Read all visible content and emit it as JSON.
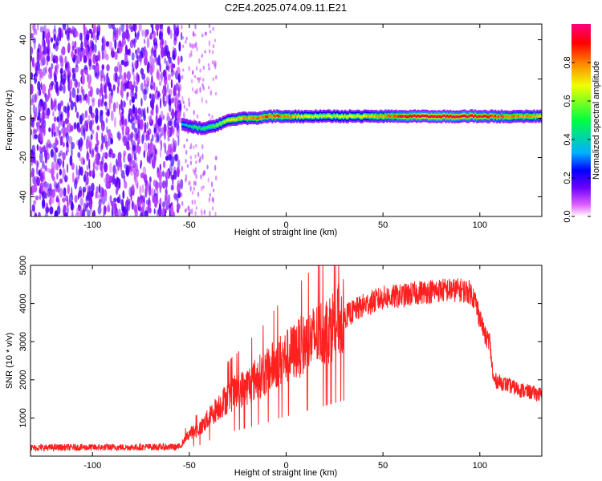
{
  "title": "C2E4.2025.074.09.11.E21",
  "chart_data": [
    {
      "type": "heatmap",
      "xlabel": "Height of straight line (km)",
      "ylabel": "Frequency (Hz)",
      "xlim": [
        -132,
        132
      ],
      "ylim": [
        -50,
        48
      ],
      "x_ticks": [
        -100,
        -50,
        0,
        50,
        100
      ],
      "y_ticks": [
        -40,
        -20,
        0,
        20,
        40
      ],
      "colorbar": {
        "label": "Normalized spectral amplitude",
        "range": [
          0,
          1
        ],
        "ticks": [
          0.0,
          0.2,
          0.4,
          0.6,
          0.8
        ],
        "colors": [
          "#ffffff",
          "#e060ff",
          "#6a00ff",
          "#0000ff",
          "#00b0ff",
          "#00ff40",
          "#f0ff00",
          "#ff8000",
          "#ff0000",
          "#ff0080"
        ]
      },
      "noise_region_x": [
        -132,
        -54
      ],
      "sparse_noise_x": [
        -54,
        -36
      ],
      "signal_ridge": [
        {
          "x": -54,
          "freq": -3,
          "amp": 0.35
        },
        {
          "x": -50,
          "freq": -4,
          "amp": 0.45
        },
        {
          "x": -46,
          "freq": -5,
          "amp": 0.5
        },
        {
          "x": -42,
          "freq": -5,
          "amp": 0.5
        },
        {
          "x": -38,
          "freq": -4,
          "amp": 0.55
        },
        {
          "x": -35,
          "freq": -3,
          "amp": 0.6
        },
        {
          "x": -30,
          "freq": -1,
          "amp": 0.7
        },
        {
          "x": -25,
          "freq": 0,
          "amp": 0.75
        },
        {
          "x": -20,
          "freq": 0,
          "amp": 0.78
        },
        {
          "x": -15,
          "freq": 0,
          "amp": 0.82
        },
        {
          "x": -10,
          "freq": 1,
          "amp": 0.85
        },
        {
          "x": -5,
          "freq": 1,
          "amp": 0.85
        },
        {
          "x": 0,
          "freq": 1,
          "amp": 0.8
        },
        {
          "x": 10,
          "freq": 1,
          "amp": 0.7
        },
        {
          "x": 20,
          "freq": 1,
          "amp": 0.65
        },
        {
          "x": 30,
          "freq": 1,
          "amp": 0.68
        },
        {
          "x": 40,
          "freq": 1,
          "amp": 0.72
        },
        {
          "x": 50,
          "freq": 1,
          "amp": 0.8
        },
        {
          "x": 60,
          "freq": 1,
          "amp": 0.9
        },
        {
          "x": 70,
          "freq": 1,
          "amp": 0.95
        },
        {
          "x": 80,
          "freq": 1,
          "amp": 0.95
        },
        {
          "x": 90,
          "freq": 1,
          "amp": 0.95
        },
        {
          "x": 100,
          "freq": 1,
          "amp": 0.92
        },
        {
          "x": 110,
          "freq": 1,
          "amp": 0.85
        },
        {
          "x": 120,
          "freq": 1,
          "amp": 0.8
        },
        {
          "x": 132,
          "freq": 1,
          "amp": 0.78
        }
      ]
    },
    {
      "type": "line",
      "xlabel": "Height of straight line (km)",
      "ylabel": "SNR (10 * v/v)",
      "xlim": [
        -132,
        132
      ],
      "ylim": [
        0,
        5000
      ],
      "x_ticks": [
        -100,
        -50,
        0,
        50,
        100
      ],
      "y_ticks": [
        1000,
        2000,
        3000,
        4000,
        5000
      ],
      "series": [
        {
          "color": "#ff2020",
          "x": [
            -132,
            -110,
            -90,
            -70,
            -55,
            -50,
            -45,
            -40,
            -35,
            -30,
            -25,
            -20,
            -15,
            -10,
            -5,
            0,
            10,
            20,
            30,
            40,
            50,
            60,
            70,
            80,
            90,
            95,
            97,
            100,
            103,
            105,
            107,
            110,
            120,
            132
          ],
          "y": [
            220,
            230,
            230,
            240,
            240,
            600,
            700,
            1000,
            1300,
            1550,
            1700,
            1850,
            2050,
            2200,
            2450,
            2600,
            2950,
            3300,
            3650,
            3950,
            4150,
            4200,
            4300,
            4350,
            4350,
            4300,
            4150,
            3650,
            3100,
            3050,
            2000,
            1950,
            1750,
            1600
          ]
        }
      ]
    }
  ]
}
